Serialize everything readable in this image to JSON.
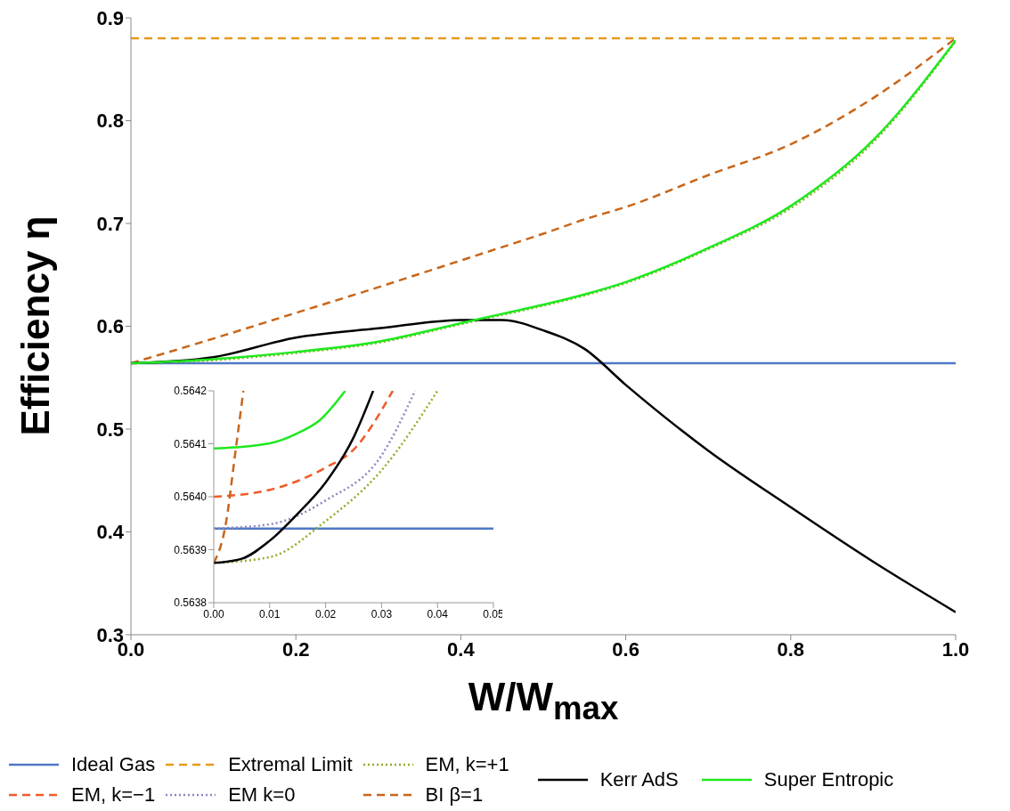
{
  "chart_data": [
    {
      "type": "line",
      "xlabel": "W/W$_{max}$",
      "ylabel": "Efficiency η",
      "x": [
        0,
        0.1,
        0.2,
        0.3,
        0.4,
        0.45,
        0.5,
        0.55,
        0.6,
        0.7,
        0.8,
        0.9,
        1.0
      ],
      "xlim": [
        0,
        1
      ],
      "xticks": [
        {
          "value": 0,
          "label": "0.0"
        },
        {
          "value": 0.2,
          "label": "0.2"
        },
        {
          "value": 0.4,
          "label": "0.4"
        },
        {
          "value": 0.6,
          "label": "0.6"
        },
        {
          "value": 0.8,
          "label": "0.8"
        },
        {
          "value": 1,
          "label": "1.0"
        }
      ],
      "ylim": [
        0.3,
        0.9
      ],
      "yticks": [
        0.3,
        0.4,
        0.5,
        0.6,
        0.7,
        0.8,
        0.9
      ],
      "grid": false,
      "legend": "bottom",
      "marker": "none",
      "series": [
        {
          "name": "Ideal Gas",
          "color": "#4f78c4",
          "line_style": "solid",
          "values": [
            0.564,
            0.564,
            0.564,
            0.564,
            0.564,
            0.564,
            0.564,
            0.564,
            0.564,
            0.564,
            0.564,
            0.564,
            0.564
          ]
        },
        {
          "name": "Extremal Limit",
          "color": "#e69a1e",
          "line_style": "dashed",
          "values": [
            0.88,
            0.88,
            0.88,
            0.88,
            0.88,
            0.88,
            0.88,
            0.88,
            0.88,
            0.88,
            0.88,
            0.88,
            0.88
          ]
        },
        {
          "name": "EM, k=+1",
          "color": "#8fae2a",
          "line_style": "dotted",
          "values": [
            0.564,
            0.567,
            0.574,
            0.584,
            0.602,
            0.611,
            0.62,
            0.63,
            0.642,
            0.675,
            0.715,
            0.779,
            0.877
          ]
        },
        {
          "name": "EM, k=−1",
          "color": "#f05a28",
          "line_style": "dashed",
          "values": [
            null,
            null,
            null,
            null,
            null,
            null,
            null,
            null,
            null,
            null,
            null,
            null,
            null
          ]
        },
        {
          "name": "EM k=0",
          "color": "#8f86c0",
          "line_style": "dotted",
          "values": [
            null,
            null,
            null,
            null,
            null,
            null,
            null,
            null,
            null,
            null,
            null,
            null,
            null
          ]
        },
        {
          "name": "BI β=1",
          "color": "#c8661a",
          "line_style": "dashed",
          "values": [
            0.564,
            0.588,
            0.613,
            0.638,
            0.664,
            0.677,
            0.69,
            0.704,
            0.716,
            0.747,
            0.777,
            0.822,
            0.88
          ]
        },
        {
          "name": "Kerr AdS",
          "color": "#000000",
          "line_style": "solid",
          "values": [
            0.564,
            0.57,
            0.589,
            0.598,
            0.606,
            0.606,
            0.596,
            0.578,
            0.543,
            0.479,
            0.424,
            0.371,
            0.322
          ]
        },
        {
          "name": "Super Entropic",
          "color": "#1ee81e",
          "line_style": "solid",
          "values": [
            0.564,
            0.568,
            0.575,
            0.585,
            0.603,
            0.612,
            0.621,
            0.631,
            0.643,
            0.676,
            0.717,
            0.781,
            0.878
          ]
        }
      ]
    },
    {
      "type": "line",
      "xlim": [
        0,
        0.05
      ],
      "xticks": [
        {
          "value": 0,
          "label": "0.00"
        },
        {
          "value": 0.01,
          "label": "0.01"
        },
        {
          "value": 0.02,
          "label": "0.02"
        },
        {
          "value": 0.03,
          "label": "0.03"
        },
        {
          "value": 0.04,
          "label": "0.04"
        },
        {
          "value": 0.05,
          "label": "0.05"
        }
      ],
      "ylim": [
        0.5638,
        0.5642
      ],
      "yticks": [
        0.5638,
        0.5639,
        {
          "value": 0.564,
          "label": "0.5640"
        },
        0.5641,
        0.5642
      ],
      "grid": false,
      "marker": "none",
      "series": [
        {
          "color": "#4f78c4",
          "line_style": "solid",
          "x": [
            0,
            0.05
          ],
          "values": [
            0.56394,
            0.56394
          ]
        },
        {
          "color": "#8fae2a",
          "line_style": "dotted",
          "x": [
            0,
            0.01,
            0.02,
            0.03,
            0.04
          ],
          "values": [
            0.563875,
            0.563886,
            0.563954,
            0.56405,
            0.5642
          ]
        },
        {
          "color": "#f05a28",
          "line_style": "dashed",
          "x": [
            0,
            0.01,
            0.02,
            0.025,
            0.032
          ],
          "values": [
            0.564,
            0.564013,
            0.564055,
            0.564089,
            0.5642
          ]
        },
        {
          "color": "#8f86c0",
          "line_style": "dotted",
          "x": [
            0,
            0.01,
            0.02,
            0.03,
            0.036
          ],
          "values": [
            0.56394,
            0.563948,
            0.563993,
            0.564078,
            0.5642
          ]
        },
        {
          "color": "#c8661a",
          "line_style": "dashed",
          "x": [
            0,
            0.002,
            0.004,
            0.0053
          ],
          "values": [
            0.563875,
            0.56394,
            0.564095,
            0.5642
          ]
        },
        {
          "color": "#000000",
          "line_style": "solid",
          "x": [
            0,
            0.005,
            0.01,
            0.015,
            0.02,
            0.025,
            0.0285
          ],
          "values": [
            0.563875,
            0.563883,
            0.563917,
            0.563968,
            0.564027,
            0.564112,
            0.5642
          ]
        },
        {
          "color": "#1ee81e",
          "line_style": "solid",
          "x": [
            0,
            0.01,
            0.015,
            0.019,
            0.0235
          ],
          "values": [
            0.564091,
            0.564101,
            0.56412,
            0.564145,
            0.5642
          ]
        }
      ]
    }
  ]
}
